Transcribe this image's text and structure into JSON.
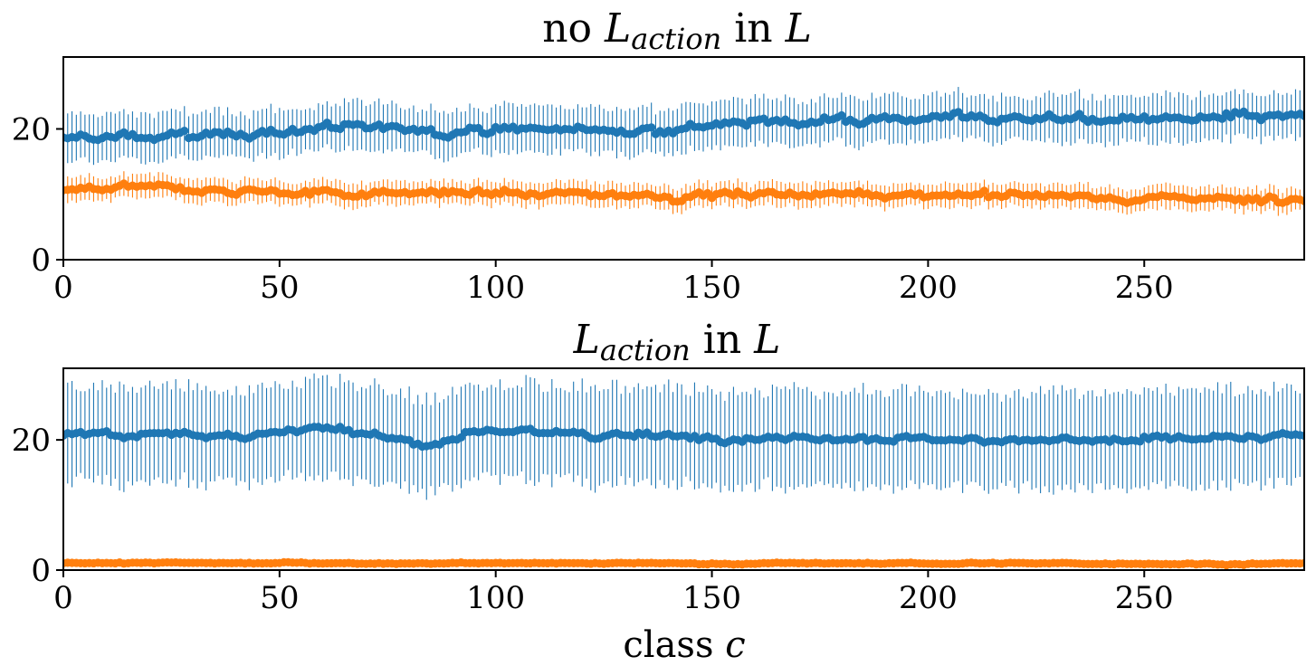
{
  "colors": {
    "series1": "#1f77b4",
    "series2": "#ff7f0e",
    "axis": "#000000",
    "background": "#ffffff"
  },
  "xlabel": {
    "prefix": "class ",
    "symbol": "c"
  },
  "chart_data": [
    {
      "type": "scatter",
      "title": {
        "prefix": "no ",
        "loss_symbol": "L",
        "loss_subscript": "action",
        "middle": " in ",
        "loss_symbol2": "L"
      },
      "xlabel": "",
      "ylabel": "",
      "xlim": [
        0,
        287
      ],
      "ylim": [
        0,
        31
      ],
      "xticks": [
        0,
        50,
        100,
        150,
        200,
        250
      ],
      "yticks": [
        0,
        20
      ],
      "grid": false,
      "error_bars": true,
      "series": [
        {
          "color": "#1f77b4",
          "point_count": 288,
          "mean_trend": [
            [
              0,
              18.3
            ],
            [
              30,
              18.8
            ],
            [
              60,
              20.2
            ],
            [
              100,
              20.0
            ],
            [
              130,
              19.8
            ],
            [
              150,
              20.9
            ],
            [
              180,
              21.4
            ],
            [
              200,
              22.0
            ],
            [
              230,
              21.9
            ],
            [
              260,
              21.4
            ],
            [
              287,
              21.6
            ]
          ],
          "error_half_width": 3.5,
          "jitter": 1.0
        },
        {
          "color": "#ff7f0e",
          "point_count": 288,
          "mean_trend": [
            [
              0,
              10.9
            ],
            [
              50,
              10.5
            ],
            [
              100,
              10.1
            ],
            [
              150,
              10.0
            ],
            [
              200,
              9.9
            ],
            [
              250,
              9.5
            ],
            [
              287,
              9.3
            ]
          ],
          "error_half_width": 1.8,
          "jitter": 0.8
        }
      ]
    },
    {
      "type": "scatter",
      "title": {
        "prefix": "",
        "loss_symbol": "L",
        "loss_subscript": "action",
        "middle": " in ",
        "loss_symbol2": "L"
      },
      "xlabel": "class c",
      "ylabel": "",
      "xlim": [
        0,
        287
      ],
      "ylim": [
        0,
        31
      ],
      "xticks": [
        0,
        50,
        100,
        150,
        200,
        250
      ],
      "yticks": [
        0,
        20
      ],
      "grid": false,
      "error_bars": true,
      "series": [
        {
          "color": "#1f77b4",
          "point_count": 288,
          "mean_trend": [
            [
              0,
              20.8
            ],
            [
              50,
              21.0
            ],
            [
              57,
              22.2
            ],
            [
              85,
              19.2
            ],
            [
              95,
              21.4
            ],
            [
              110,
              20.9
            ],
            [
              150,
              20.6
            ],
            [
              200,
              20.1
            ],
            [
              250,
              20.0
            ],
            [
              287,
              20.5
            ]
          ],
          "error_half_width": 7.3,
          "jitter": 0.7
        },
        {
          "color": "#ff7f0e",
          "point_count": 288,
          "mean_trend": [
            [
              0,
              1.1
            ],
            [
              287,
              1.0
            ]
          ],
          "error_half_width": 0.3,
          "jitter": 0.15
        }
      ]
    }
  ]
}
